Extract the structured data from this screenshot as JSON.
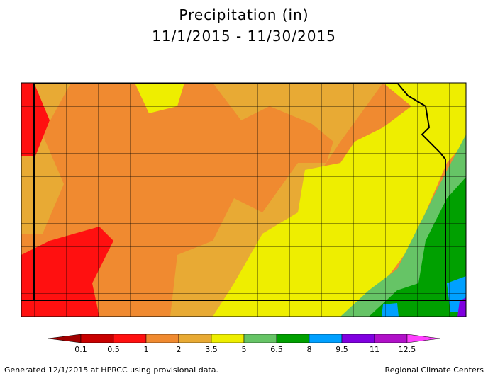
{
  "header": {
    "title": "Precipitation (in)",
    "period": "11/1/2015 - 11/30/2015"
  },
  "legend": {
    "colors": [
      "#a00000",
      "#c80000",
      "#ff1010",
      "#f08a30",
      "#e8aa34",
      "#eeee00",
      "#66c466",
      "#00a000",
      "#00a0ff",
      "#8000e0",
      "#b010c8",
      "#ff40ff"
    ],
    "labels": [
      "0.1",
      "0.5",
      "1",
      "2",
      "3.5",
      "5",
      "6.5",
      "8",
      "9.5",
      "11",
      "12.5"
    ]
  },
  "footer": {
    "left": "Generated 12/1/2015 at HPRCC using provisional data.",
    "right": "Regional Climate Centers"
  }
}
